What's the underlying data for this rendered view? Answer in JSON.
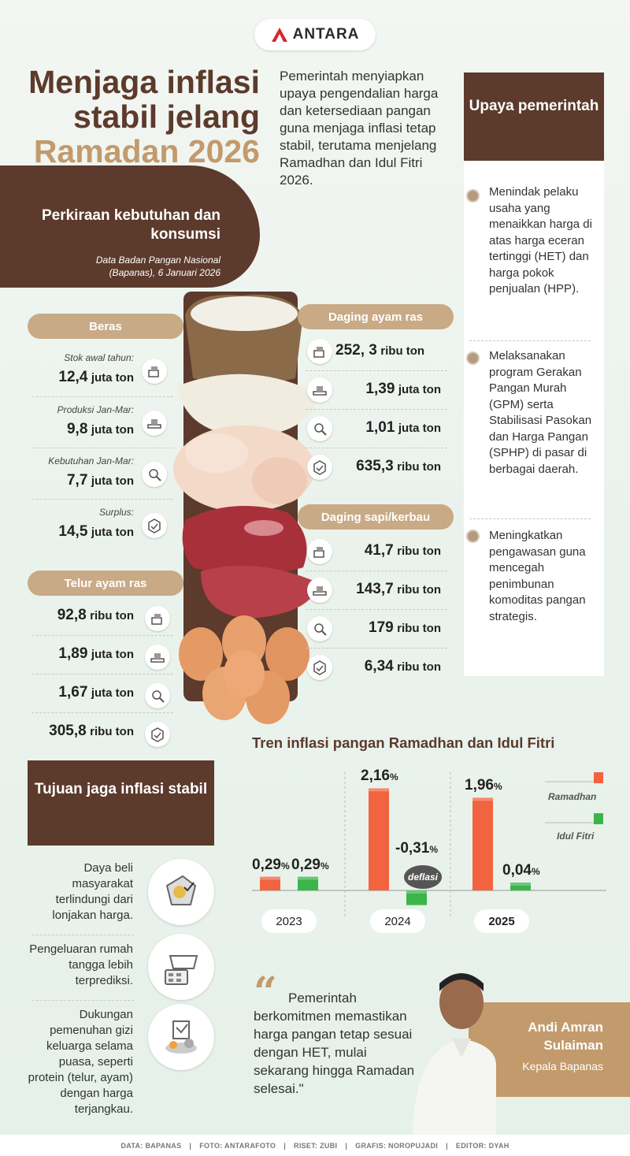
{
  "logo": {
    "text": "ANTARA"
  },
  "headline": {
    "line1": "Menjaga inflasi",
    "line2": "stabil jelang",
    "line3": "Ramadan 2026"
  },
  "intro": "Pemerintah menyiapkan upaya pengendalian harga dan ketersediaan pangan guna menjaga inflasi tetap stabil, terutama menjelang Ramadhan dan Idul Fitri 2026.",
  "upaya": {
    "title": "Upaya pemerintah",
    "items": [
      "Menindak pelaku usaha yang menaikkan harga di atas harga eceran tertinggi (HET) dan harga pokok penjualan (HPP).",
      "Melaksanakan program Gerakan Pangan Murah (GPM) serta Stabilisasi Pasokan dan Harga Pangan (SPHP) di pasar di berbagai daerah.",
      "Meningkatkan pengawasan guna mencegah penimbunan komoditas pangan strategis."
    ]
  },
  "perkiraan": {
    "title": "Perkiraan kebutuhan dan konsumsi",
    "source": "Data Badan Pangan Nasional (Bapanas), 6 Januari 2026"
  },
  "beras": {
    "title": "Beras",
    "rows": [
      {
        "label": "Stok awal tahun:",
        "value": "12,4",
        "unit": "juta ton"
      },
      {
        "label": "Produksi Jan-Mar:",
        "value": "9,8",
        "unit": "juta ton"
      },
      {
        "label": "Kebutuhan Jan-Mar:",
        "value": "7,7",
        "unit": "juta ton"
      },
      {
        "label": "Surplus:",
        "value": "14,5",
        "unit": "juta ton"
      }
    ]
  },
  "telur": {
    "title": "Telur ayam ras",
    "rows": [
      {
        "value": "92,8",
        "unit": "ribu ton"
      },
      {
        "value": "1,89",
        "unit": "juta ton"
      },
      {
        "value": "1,67",
        "unit": "juta ton"
      },
      {
        "value": "305,8",
        "unit": "ribu ton"
      }
    ]
  },
  "ayam": {
    "title": "Daging ayam ras",
    "rows": [
      {
        "value": "252, 3",
        "unit": "ribu ton"
      },
      {
        "value": "1,39",
        "unit": "juta ton"
      },
      {
        "value": "1,01",
        "unit": "juta ton"
      },
      {
        "value": "635,3",
        "unit": "ribu ton"
      }
    ]
  },
  "sapi": {
    "title": "Daging sapi/kerbau",
    "rows": [
      {
        "value": "41,7",
        "unit": "ribu ton"
      },
      {
        "value": "143,7",
        "unit": "ribu ton"
      },
      {
        "value": "179",
        "unit": "ribu ton"
      },
      {
        "value": "6,34",
        "unit": "ribu ton"
      }
    ]
  },
  "tujuan": {
    "title": "Tujuan jaga inflasi stabil",
    "items": [
      "Daya beli masyarakat terlindungi dari lonjakan harga.",
      "Pengeluaran rumah tangga lebih terprediksi.",
      "Dukungan pemenuhan gizi keluarga selama puasa, seperti protein (telur, ayam) dengan harga terjangkau."
    ]
  },
  "chart_data": {
    "type": "bar",
    "title": "Tren inflasi pangan Ramadhan dan Idul Fitri",
    "categories": [
      "2023",
      "2024",
      "2025"
    ],
    "series": [
      {
        "name": "Ramadhan",
        "color": "#f2633f",
        "values": [
          0.29,
          2.16,
          1.96
        ],
        "labels": [
          "0,29",
          "2,16",
          "1,96"
        ]
      },
      {
        "name": "Idul Fitri",
        "color": "#3bb54a",
        "values": [
          0.29,
          -0.31,
          0.04
        ],
        "labels": [
          "0,29",
          "-0,31",
          "0,04"
        ]
      }
    ],
    "unit": "%",
    "annotation": "deflasi"
  },
  "quote": {
    "text": "Pemerintah berkomitmen memastikan harga pangan tetap sesuai dengan HET, mulai sekarang hingga Ramadan selesai.\"",
    "name": "Andi Amran Sulaiman",
    "role": "Kepala Bapanas"
  },
  "footer": [
    "DATA: BAPANAS",
    "|",
    "FOTO: ANTARAFOTO",
    "|",
    "RISET: ZUBI",
    "|",
    "GRAFIS: NOROPUJADI",
    "|",
    "EDITOR: DYAH"
  ],
  "colors": {
    "brown": "#5c3a2c",
    "tan": "#c29a6b",
    "orange": "#f2633f",
    "green": "#3bb54a"
  }
}
